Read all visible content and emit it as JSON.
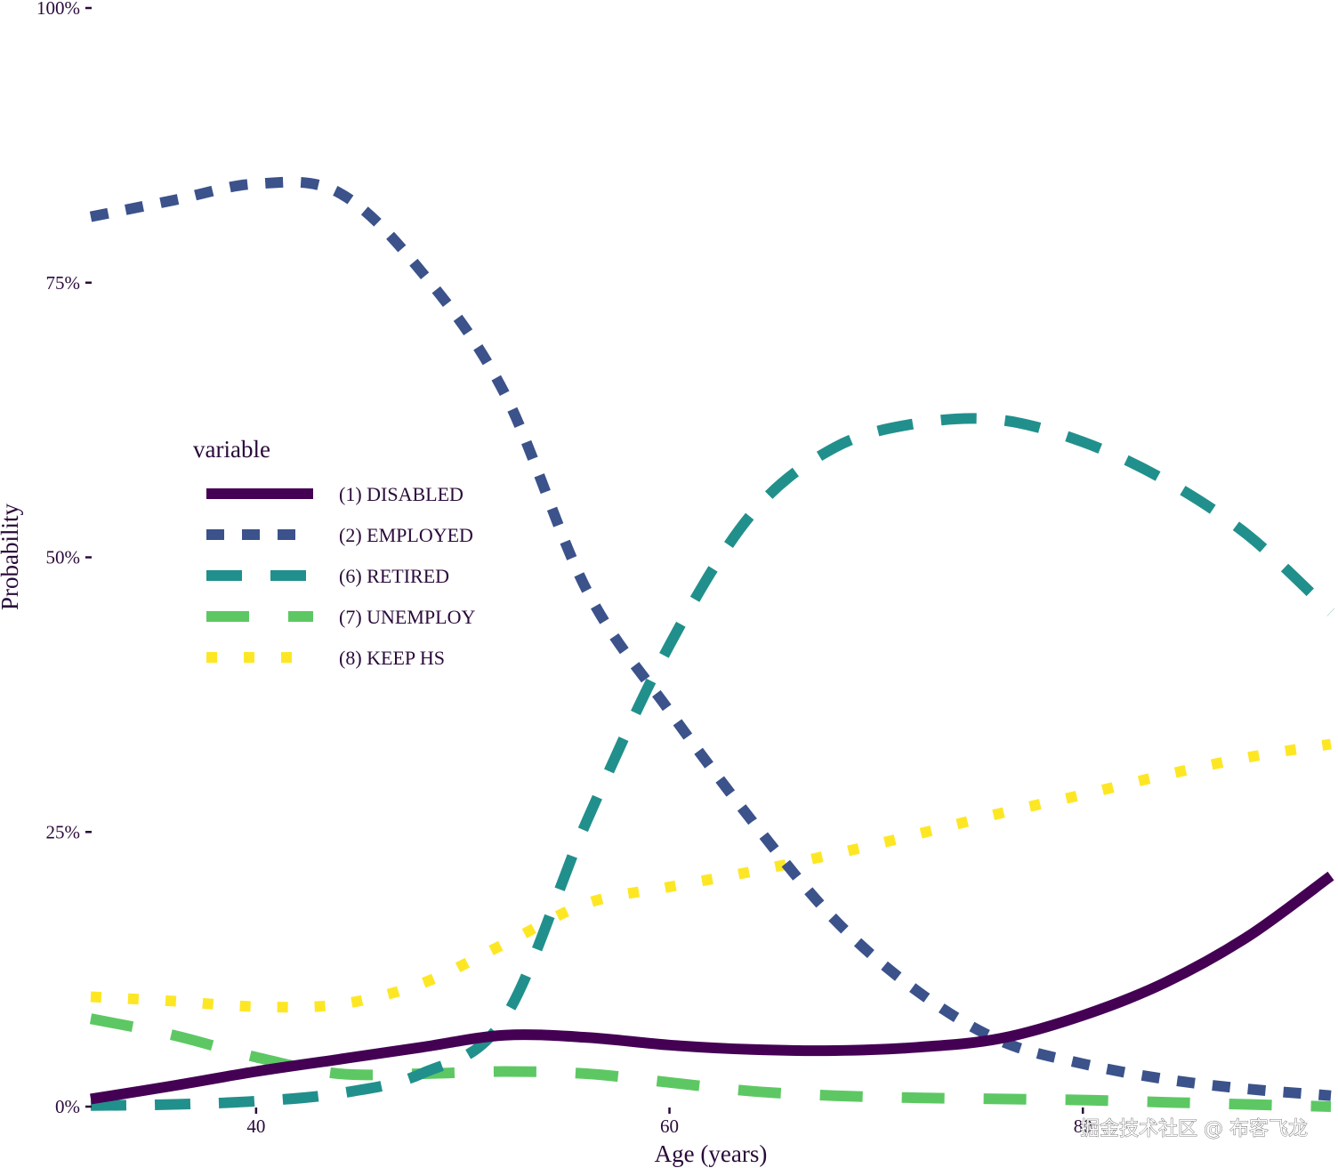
{
  "chart_data": {
    "type": "line",
    "xlabel": "Age (years)",
    "ylabel": "Probability",
    "xlim": [
      32,
      92
    ],
    "ylim": [
      0,
      1
    ],
    "x_ticks": [
      {
        "value": 40,
        "label": "40"
      },
      {
        "value": 60,
        "label": "60"
      },
      {
        "value": 80,
        "label": "80"
      }
    ],
    "y_ticks": [
      {
        "value": 0,
        "label": "0%"
      },
      {
        "value": 0.25,
        "label": "25%"
      },
      {
        "value": 0.5,
        "label": "50%"
      },
      {
        "value": 0.75,
        "label": "75%"
      },
      {
        "value": 1,
        "label": "100%"
      }
    ],
    "grid": false,
    "legend": {
      "title": "variable",
      "position": "left-middle"
    },
    "series": [
      {
        "name": "(1) DISABLED",
        "color": "#440154",
        "dash": "solid",
        "x": [
          32,
          36,
          40,
          44,
          48,
          52,
          56,
          60,
          64,
          68,
          72,
          76,
          80,
          84,
          88,
          92
        ],
        "y": [
          0.007,
          0.019,
          0.032,
          0.043,
          0.054,
          0.065,
          0.063,
          0.056,
          0.052,
          0.051,
          0.054,
          0.062,
          0.083,
          0.113,
          0.155,
          0.21
        ]
      },
      {
        "name": "(2) EMPLOYED",
        "color": "#3b528b",
        "dash": "dash",
        "x": [
          32,
          36,
          40,
          44,
          48,
          52,
          56,
          60,
          64,
          68,
          72,
          76,
          80,
          84,
          88,
          92
        ],
        "y": [
          0.81,
          0.825,
          0.84,
          0.832,
          0.76,
          0.65,
          0.47,
          0.36,
          0.26,
          0.17,
          0.105,
          0.06,
          0.039,
          0.025,
          0.016,
          0.01
        ]
      },
      {
        "name": "(6) RETIRED",
        "color": "#21908c",
        "dash": "longdash",
        "x": [
          32,
          36,
          40,
          44,
          48,
          52,
          56,
          60,
          64,
          68,
          72,
          76,
          80,
          84,
          88,
          92
        ],
        "y": [
          0.001,
          0.002,
          0.005,
          0.012,
          0.03,
          0.08,
          0.26,
          0.42,
          0.54,
          0.6,
          0.622,
          0.625,
          0.605,
          0.57,
          0.52,
          0.45
        ]
      },
      {
        "name": "(7) UNEMPLOY",
        "color": "#5dc863",
        "dash": "twodash",
        "x": [
          32,
          36,
          40,
          44,
          48,
          52,
          56,
          60,
          64,
          68,
          72,
          76,
          80,
          84,
          88,
          92
        ],
        "y": [
          0.08,
          0.065,
          0.045,
          0.03,
          0.03,
          0.032,
          0.03,
          0.022,
          0.014,
          0.01,
          0.008,
          0.007,
          0.006,
          0.004,
          0.002,
          0.0
        ]
      },
      {
        "name": "(8) KEEP HS",
        "color": "#fde725",
        "dash": "dotted",
        "x": [
          32,
          36,
          40,
          44,
          48,
          52,
          56,
          60,
          64,
          68,
          72,
          76,
          80,
          84,
          88,
          92
        ],
        "y": [
          0.1,
          0.096,
          0.091,
          0.093,
          0.112,
          0.148,
          0.185,
          0.2,
          0.214,
          0.23,
          0.248,
          0.267,
          0.284,
          0.302,
          0.318,
          0.33
        ]
      }
    ]
  },
  "watermark": "掘金技术社区 @ 布客飞龙"
}
